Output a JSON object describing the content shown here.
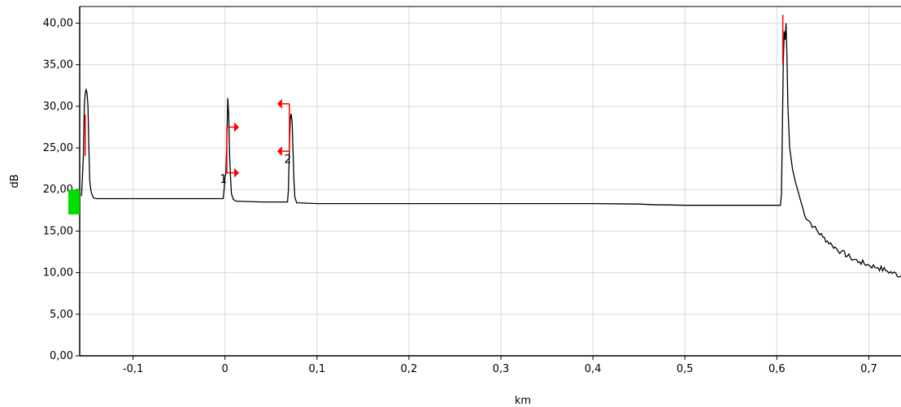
{
  "chart_data": {
    "type": "line",
    "title": "",
    "xlabel": "km",
    "ylabel": "dB",
    "xlim": [
      -0.158,
      0.735
    ],
    "ylim": [
      0,
      42
    ],
    "grid": true,
    "x_ticks": [
      {
        "value": -0.1,
        "label": "-0,1"
      },
      {
        "value": 0.0,
        "label": "0"
      },
      {
        "value": 0.1,
        "label": "0,1"
      },
      {
        "value": 0.2,
        "label": "0,2"
      },
      {
        "value": 0.3,
        "label": "0,3"
      },
      {
        "value": 0.4,
        "label": "0,4"
      },
      {
        "value": 0.5,
        "label": "0,5"
      },
      {
        "value": 0.6,
        "label": "0,6"
      },
      {
        "value": 0.7,
        "label": "0,7"
      }
    ],
    "y_ticks": [
      {
        "value": 0,
        "label": "0,00"
      },
      {
        "value": 5,
        "label": "5,00"
      },
      {
        "value": 10,
        "label": "10,00"
      },
      {
        "value": 15,
        "label": "15,00"
      },
      {
        "value": 20,
        "label": "20,00"
      },
      {
        "value": 25,
        "label": "25,00"
      },
      {
        "value": 30,
        "label": "30,00"
      },
      {
        "value": 35,
        "label": "35,00"
      },
      {
        "value": 40,
        "label": "40,00"
      }
    ],
    "trace": {
      "color": "#000000",
      "points": [
        [
          -0.156,
          19.2
        ],
        [
          -0.154,
          24.0
        ],
        [
          -0.153,
          30.0
        ],
        [
          -0.152,
          31.6
        ],
        [
          -0.151,
          32.0
        ],
        [
          -0.15,
          31.6
        ],
        [
          -0.149,
          30.0
        ],
        [
          -0.148,
          25.0
        ],
        [
          -0.147,
          21.0
        ],
        [
          -0.146,
          20.0
        ],
        [
          -0.145,
          19.5
        ],
        [
          -0.143,
          19.0
        ],
        [
          -0.14,
          18.9
        ],
        [
          -0.1,
          18.9
        ],
        [
          -0.05,
          18.9
        ],
        [
          -0.002,
          18.9
        ],
        [
          -0.001,
          20.0
        ],
        [
          0.0,
          21.5
        ],
        [
          0.001,
          21.9
        ],
        [
          0.002,
          26.0
        ],
        [
          0.003,
          31.0
        ],
        [
          0.004,
          29.0
        ],
        [
          0.005,
          24.0
        ],
        [
          0.006,
          21.5
        ],
        [
          0.007,
          19.5
        ],
        [
          0.009,
          18.8
        ],
        [
          0.012,
          18.6
        ],
        [
          0.04,
          18.5
        ],
        [
          0.068,
          18.5
        ],
        [
          0.069,
          20.0
        ],
        [
          0.07,
          25.0
        ],
        [
          0.071,
          28.5
        ],
        [
          0.072,
          29.1
        ],
        [
          0.073,
          28.0
        ],
        [
          0.074,
          24.5
        ],
        [
          0.075,
          21.0
        ],
        [
          0.076,
          19.0
        ],
        [
          0.078,
          18.4
        ],
        [
          0.1,
          18.3
        ],
        [
          0.2,
          18.3
        ],
        [
          0.3,
          18.3
        ],
        [
          0.4,
          18.3
        ],
        [
          0.45,
          18.25
        ],
        [
          0.46,
          18.2
        ],
        [
          0.47,
          18.15
        ],
        [
          0.48,
          18.15
        ],
        [
          0.5,
          18.1
        ],
        [
          0.55,
          18.1
        ],
        [
          0.604,
          18.1
        ],
        [
          0.605,
          19.5
        ],
        [
          0.606,
          27.0
        ],
        [
          0.607,
          35.0
        ],
        [
          0.608,
          39.0
        ],
        [
          0.609,
          38.0
        ],
        [
          0.61,
          40.0
        ],
        [
          0.611,
          36.0
        ],
        [
          0.612,
          30.0
        ],
        [
          0.614,
          25.0
        ],
        [
          0.617,
          22.5
        ],
        [
          0.62,
          21.0
        ],
        [
          0.625,
          19.0
        ],
        [
          0.63,
          17.0
        ],
        [
          0.64,
          15.5
        ],
        [
          0.65,
          14.3
        ],
        [
          0.66,
          13.3
        ],
        [
          0.67,
          12.5
        ],
        [
          0.68,
          11.8
        ],
        [
          0.69,
          11.3
        ],
        [
          0.7,
          10.9
        ],
        [
          0.71,
          10.6
        ],
        [
          0.72,
          10.2
        ],
        [
          0.735,
          9.6
        ]
      ]
    },
    "events": [
      {
        "label": "1",
        "x": 0.0,
        "y": 20.8
      },
      {
        "label": "2",
        "x": 0.07,
        "y": 23.2
      }
    ],
    "event_markers": [
      {
        "color": "#ff0000",
        "x": 0.002,
        "y_top": 27.5,
        "y_bottom": 22.0,
        "arrow_direction": "right"
      },
      {
        "color": "#ff0000",
        "x": 0.07,
        "y_top": 30.3,
        "y_bottom": 24.6,
        "arrow_direction": "left"
      }
    ],
    "markers": [
      {
        "color": "#ff0000",
        "x": -0.152,
        "y_top": 29.0,
        "y_bottom": 24.0
      },
      {
        "color": "#ff0000",
        "x": 0.6065,
        "y_top": 41.0,
        "y_bottom": 35.0
      }
    ],
    "launch_indicator": {
      "color": "#00dd00",
      "y_top": 20.0,
      "y_bottom": 17.0
    }
  }
}
